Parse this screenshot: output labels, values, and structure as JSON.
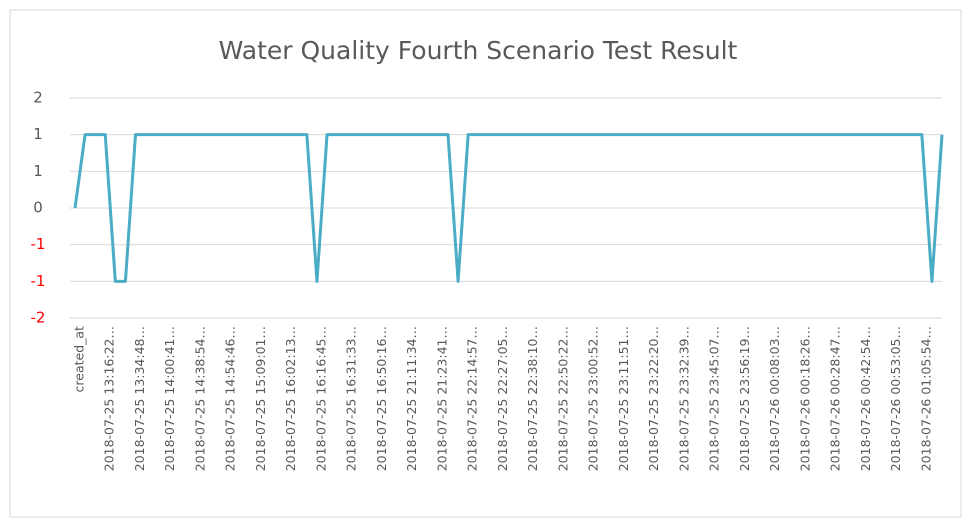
{
  "chart_data": {
    "type": "line",
    "title": "Water Quality Fourth Scenario Test Result",
    "categories": [
      "created_at",
      null,
      null,
      "2018-07-25 13:16:22…",
      null,
      null,
      "2018-07-25 13:34:48…",
      null,
      null,
      "2018-07-25 14:00:41…",
      null,
      null,
      "2018-07-25 14:38:54…",
      null,
      null,
      "2018-07-25 14:54:46…",
      null,
      null,
      "2018-07-25 15:09:01…",
      null,
      null,
      "2018-07-25 16:02:13…",
      null,
      null,
      "2018-07-25 16:16:45…",
      null,
      null,
      "2018-07-25 16:31:33…",
      null,
      null,
      "2018-07-25 16:50:16…",
      null,
      null,
      "2018-07-25 21:11:34…",
      null,
      null,
      "2018-07-25 21:23:41…",
      null,
      null,
      "2018-07-25 22:14:57…",
      null,
      null,
      "2018-07-25 22:27:05…",
      null,
      null,
      "2018-07-25 22:38:10…",
      null,
      null,
      "2018-07-25 22:50:22…",
      null,
      null,
      "2018-07-25 23:00:52…",
      null,
      null,
      "2018-07-25 23:11:51…",
      null,
      null,
      "2018-07-25 23:22:20…",
      null,
      null,
      "2018-07-25 23:32:39…",
      null,
      null,
      "2018-07-25 23:45:07…",
      null,
      null,
      "2018-07-25 23:56:19…",
      null,
      null,
      "2018-07-26 00:08:03…",
      null,
      null,
      "2018-07-26 00:18:26…",
      null,
      null,
      "2018-07-26 00:28:47…",
      null,
      null,
      "2018-07-26 00:42:54…",
      null,
      null,
      "2018-07-26 00:53:05…",
      null,
      null,
      "2018-07-26 01:05:54…",
      null,
      null
    ],
    "values": [
      0,
      1,
      1,
      1,
      -1,
      -1,
      1,
      1,
      1,
      1,
      1,
      1,
      1,
      1,
      1,
      1,
      1,
      1,
      1,
      1,
      1,
      1,
      1,
      1,
      -1,
      1,
      1,
      1,
      1,
      1,
      1,
      1,
      1,
      1,
      1,
      1,
      1,
      1,
      -1,
      1,
      1,
      1,
      1,
      1,
      1,
      1,
      1,
      1,
      1,
      1,
      1,
      1,
      1,
      1,
      1,
      1,
      1,
      1,
      1,
      1,
      1,
      1,
      1,
      1,
      1,
      1,
      1,
      1,
      1,
      1,
      1,
      1,
      1,
      1,
      1,
      1,
      1,
      1,
      1,
      1,
      1,
      1,
      1,
      1,
      1,
      -1,
      1
    ],
    "color": "#4bacc6",
    "negative_label_color": "#ff0000",
    "ylim": [
      -1.5,
      1.5
    ],
    "yticks": [
      {
        "value": 1.5,
        "label": "2"
      },
      1,
      {
        "value": 0.5,
        "label": "1"
      },
      0,
      {
        "value": -0.5,
        "label": "-1"
      },
      -1,
      {
        "value": -1.5,
        "label": "-2"
      }
    ],
    "grid": true
  }
}
